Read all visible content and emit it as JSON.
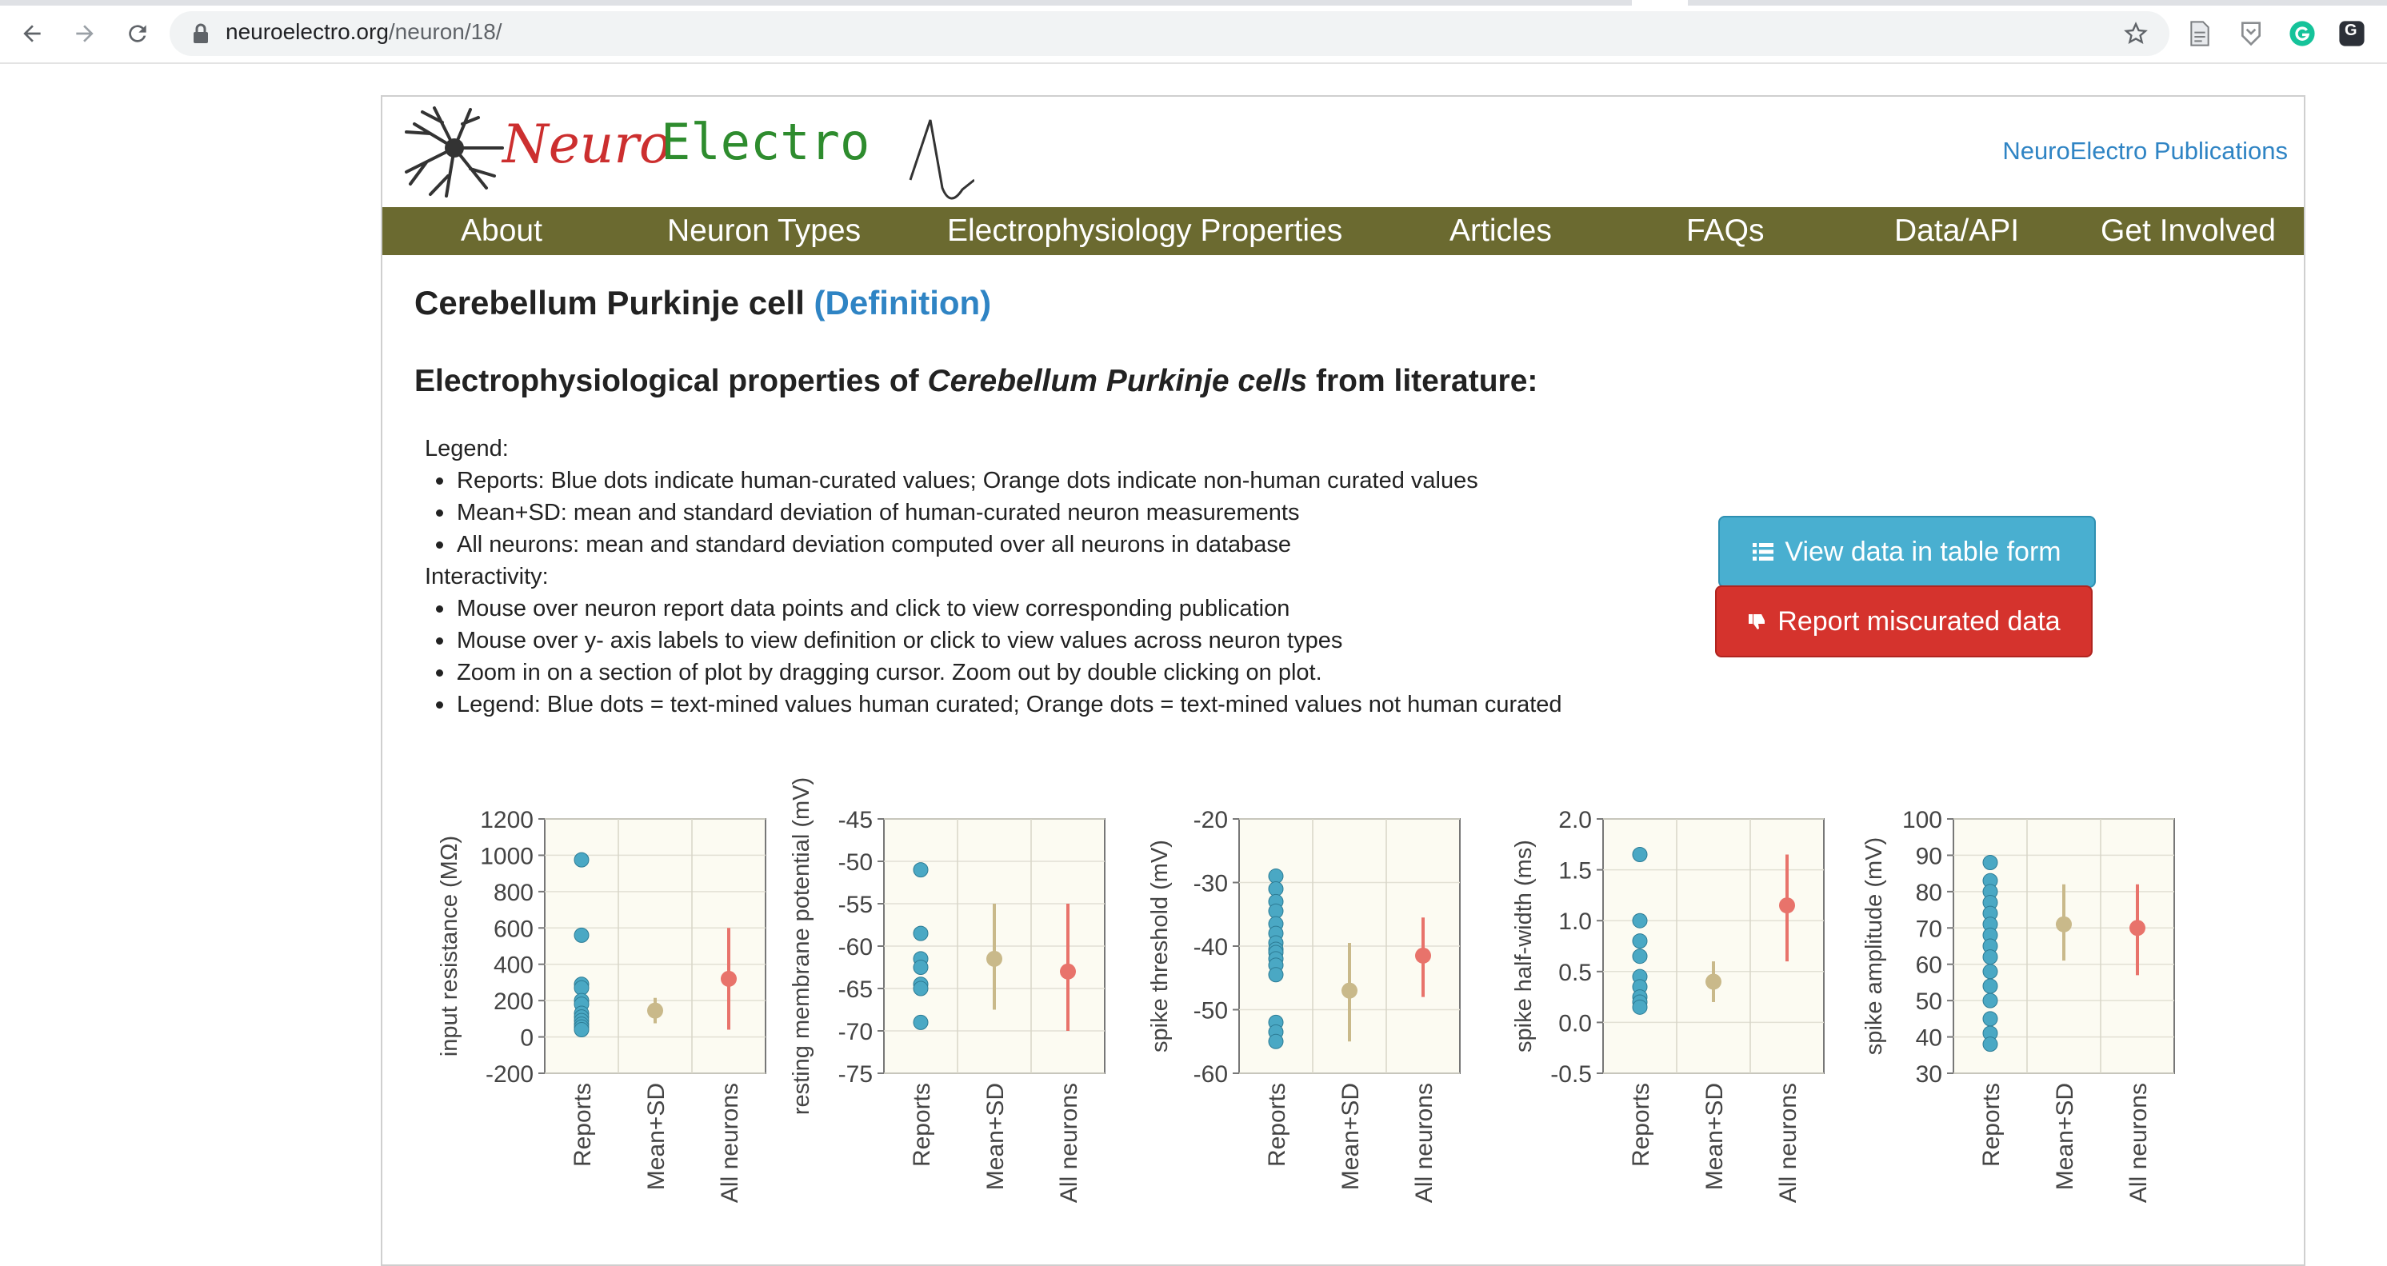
{
  "browser": {
    "url_host": "neuroelectro.org",
    "url_path": "/neuron/18/",
    "extension_letter": "G"
  },
  "header": {
    "logo_neuro": "Neuro",
    "logo_electro": "Electro",
    "publications_link": "NeuroElectro Publications"
  },
  "nav": {
    "items": [
      "About",
      "Neuron Types",
      "Electrophysiology Properties",
      "Articles",
      "FAQs",
      "Data/API",
      "Get Involved"
    ]
  },
  "main": {
    "title": "Cerebellum Purkinje cell",
    "definition_link": "(Definition)",
    "subtitle_prefix": "Electrophysiological properties of ",
    "subtitle_em": "Cerebellum Purkinje cells",
    "subtitle_suffix": " from literature:",
    "legend_heading": "Legend:",
    "legend_items": [
      "Reports: Blue dots indicate human-curated values; Orange dots indicate non-human curated values",
      "Mean+SD: mean and standard deviation of human-curated neuron measurements",
      "All neurons: mean and standard deviation computed over all neurons in database"
    ],
    "interactivity_heading": "Interactivity:",
    "interactivity_items": [
      "Mouse over neuron report data points and click to view corresponding publication",
      "Mouse over y- axis labels to view definition or click to view values across neuron types",
      "Zoom in on a section of plot by dragging cursor. Zoom out by double clicking on plot.",
      "Legend: Blue dots = text-mined values human curated; Orange dots = text-mined values not human curated"
    ],
    "view_table_button": "View data in table form",
    "report_button": "Report miscurated data"
  },
  "colors": {
    "nav_bg": "#6b6a30",
    "link": "#2f84c4",
    "report_dot": "#4aa8c4",
    "mean_sd": "#c9b98a",
    "all_neurons": "#e8736b",
    "plot_bg": "#fcfbf2"
  },
  "chart_data": [
    {
      "type": "scatter",
      "ylabel": "input resistance (MΩ)",
      "ylim": [
        -200,
        1200
      ],
      "yticks": [
        "1200",
        "1000",
        "800",
        "600",
        "400",
        "200",
        "0",
        "-200"
      ],
      "categories": [
        "Reports",
        "Mean+SD",
        "All neurons"
      ],
      "reports": [
        975,
        560,
        290,
        270,
        200,
        180,
        130,
        110,
        90,
        70,
        55,
        40
      ],
      "mean_sd": {
        "mean": 145,
        "low": 75,
        "high": 215
      },
      "all_neurons": {
        "mean": 320,
        "low": 40,
        "high": 600
      }
    },
    {
      "type": "scatter",
      "ylabel": "resting membrane potential (mV)",
      "ylim": [
        -75,
        -45
      ],
      "yticks": [
        "-45",
        "-50",
        "-55",
        "-60",
        "-65",
        "-70",
        "-75"
      ],
      "categories": [
        "Reports",
        "Mean+SD",
        "All neurons"
      ],
      "reports": [
        -51,
        -58.5,
        -61.5,
        -62.5,
        -64.5,
        -65,
        -69
      ],
      "mean_sd": {
        "mean": -61.5,
        "low": -67.5,
        "high": -55
      },
      "all_neurons": {
        "mean": -63,
        "low": -70,
        "high": -55
      }
    },
    {
      "type": "scatter",
      "ylabel": "spike threshold (mV)",
      "ylim": [
        -60,
        -20
      ],
      "yticks": [
        "-20",
        "-30",
        "-40",
        "-50",
        "-60"
      ],
      "categories": [
        "Reports",
        "Mean+SD",
        "All neurons"
      ],
      "reports": [
        -29,
        -31,
        -33,
        -34.5,
        -36.5,
        -38,
        -39.5,
        -40.5,
        -41,
        -42,
        -43,
        -44.5,
        -52,
        -53.5,
        -55
      ],
      "mean_sd": {
        "mean": -47,
        "low": -55,
        "high": -39.5
      },
      "all_neurons": {
        "mean": -41.5,
        "low": -48,
        "high": -35.5
      }
    },
    {
      "type": "scatter",
      "ylabel": "spike half-width (ms)",
      "ylim": [
        -0.5,
        2.0
      ],
      "yticks": [
        "2.0",
        "1.5",
        "1.0",
        "0.5",
        "0.0",
        "-0.5"
      ],
      "categories": [
        "Reports",
        "Mean+SD",
        "All neurons"
      ],
      "reports": [
        1.65,
        1.0,
        0.8,
        0.65,
        0.45,
        0.35,
        0.25,
        0.2,
        0.15
      ],
      "mean_sd": {
        "mean": 0.4,
        "low": 0.2,
        "high": 0.6
      },
      "all_neurons": {
        "mean": 1.15,
        "low": 0.6,
        "high": 1.65
      }
    },
    {
      "type": "scatter",
      "ylabel": "spike amplitude (mV)",
      "ylim": [
        30,
        100
      ],
      "yticks": [
        "100",
        "90",
        "80",
        "70",
        "60",
        "50",
        "40",
        "30"
      ],
      "categories": [
        "Reports",
        "Mean+SD",
        "All neurons"
      ],
      "reports": [
        88,
        83,
        80,
        77,
        74,
        71,
        68,
        65,
        62,
        58,
        54,
        50,
        45,
        41,
        38
      ],
      "mean_sd": {
        "mean": 71,
        "low": 61,
        "high": 82
      },
      "all_neurons": {
        "mean": 70,
        "low": 57,
        "high": 82
      }
    }
  ]
}
